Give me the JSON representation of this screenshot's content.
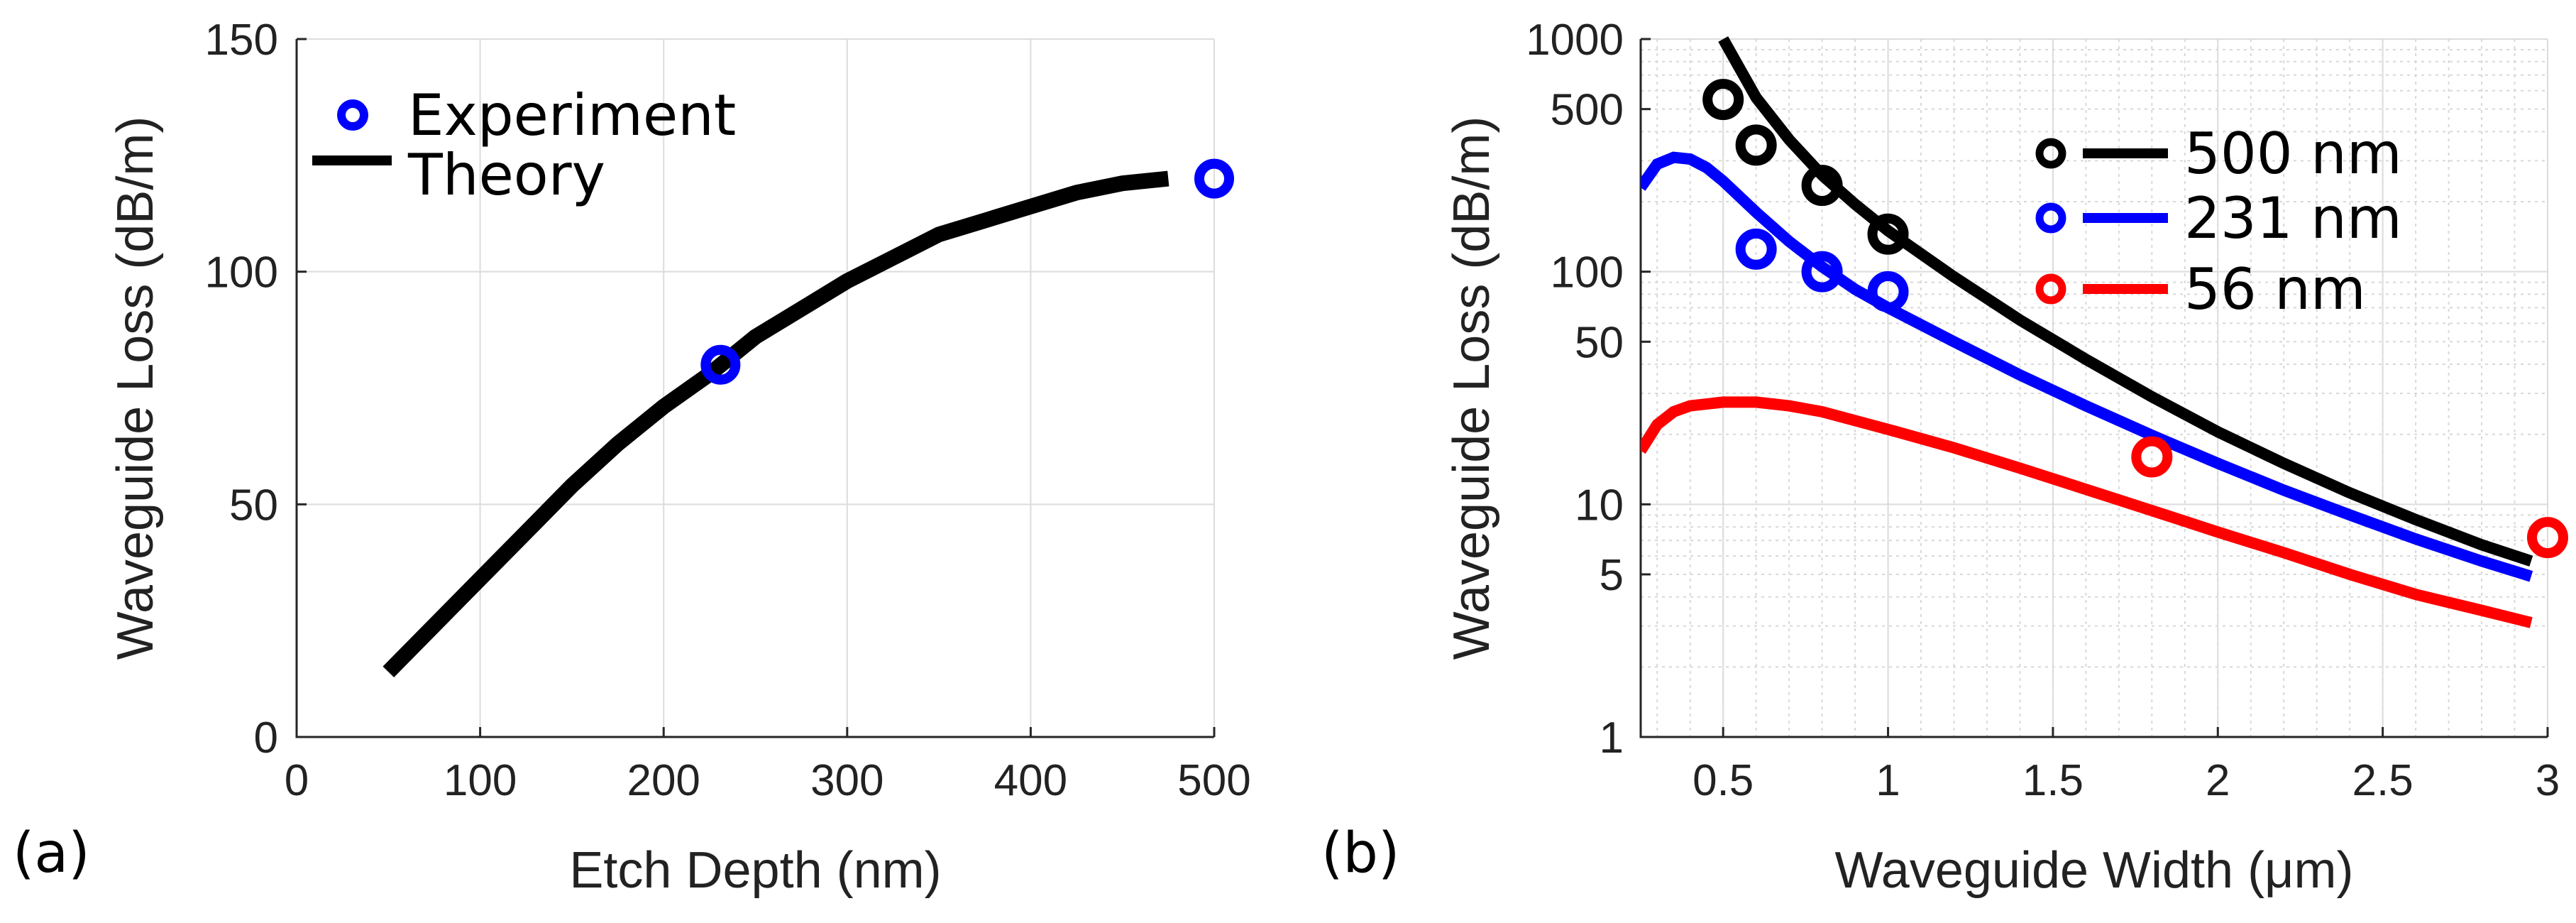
{
  "chart_data": [
    {
      "panel": "(a)",
      "type": "line",
      "xlabel": "Etch Depth (nm)",
      "ylabel": "Waveguide Loss (dB/m)",
      "xlim": [
        0,
        500
      ],
      "ylim": [
        0,
        150
      ],
      "xticks": [
        "0",
        "100",
        "200",
        "300",
        "400",
        "500"
      ],
      "yticks": [
        "0",
        "50",
        "100",
        "150"
      ],
      "grid": true,
      "legend_position": "top-left",
      "legend": [
        "Experiment",
        "Theory"
      ],
      "series": [
        {
          "name": "Theory",
          "style": "line",
          "color": "#000000",
          "x": [
            50,
            75,
            100,
            125,
            150,
            175,
            200,
            225,
            250,
            275,
            300,
            325,
            350,
            375,
            400,
            425,
            450,
            475
          ],
          "y": [
            14,
            24,
            34,
            44,
            54,
            63,
            71,
            78,
            86,
            92,
            98,
            103,
            108,
            111,
            114,
            117,
            119,
            120
          ]
        },
        {
          "name": "Experiment",
          "style": "marker",
          "color": "#0000ff",
          "x": [
            231,
            500
          ],
          "y": [
            80,
            120
          ]
        }
      ]
    },
    {
      "panel": "(b)",
      "type": "line",
      "xlabel": "Waveguide Width (μm)",
      "ylabel": "Waveguide Loss (dB/m)",
      "xscale": "linear",
      "yscale": "log",
      "xlim": [
        0.25,
        3
      ],
      "ylim": [
        1,
        1000
      ],
      "xticks": [
        "0.5",
        "1",
        "1.5",
        "2",
        "2.5",
        "3"
      ],
      "yticks": [
        "1",
        "5",
        "10",
        "50",
        "100",
        "500",
        "1000"
      ],
      "grid": true,
      "legend_position": "top-right",
      "legend": [
        "500 nm",
        "231 nm",
        "56 nm"
      ],
      "series": [
        {
          "name": "500 nm",
          "color": "#000000",
          "line_x": [
            0.5,
            0.6,
            0.7,
            0.8,
            0.9,
            1.0,
            1.2,
            1.4,
            1.6,
            1.8,
            2.0,
            2.2,
            2.4,
            2.6,
            2.8,
            2.95
          ],
          "line_y": [
            1000,
            560,
            370,
            260,
            195,
            150,
            95,
            62,
            42,
            29,
            20.5,
            15,
            11.2,
            8.6,
            6.7,
            5.7
          ],
          "points_x": [
            0.5,
            0.6,
            0.8,
            1.0
          ],
          "points_y": [
            550,
            350,
            235,
            145
          ]
        },
        {
          "name": "231 nm",
          "color": "#0000ff",
          "line_x": [
            0.25,
            0.3,
            0.35,
            0.4,
            0.45,
            0.5,
            0.6,
            0.7,
            0.8,
            0.9,
            1.0,
            1.2,
            1.4,
            1.6,
            1.8,
            2.0,
            2.2,
            2.4,
            2.6,
            2.8,
            2.95
          ],
          "line_y": [
            230,
            290,
            310,
            305,
            280,
            245,
            180,
            135,
            105,
            84,
            70,
            50,
            36,
            26.5,
            19.8,
            15,
            11.5,
            9,
            7.1,
            5.7,
            4.9
          ],
          "points_x": [
            0.6,
            0.8,
            1.0
          ],
          "points_y": [
            125,
            100,
            82
          ]
        },
        {
          "name": "56 nm",
          "color": "#ff0000",
          "line_x": [
            0.25,
            0.3,
            0.35,
            0.4,
            0.5,
            0.6,
            0.7,
            0.8,
            1.0,
            1.2,
            1.4,
            1.6,
            1.8,
            2.0,
            2.2,
            2.4,
            2.6,
            2.8,
            2.95
          ],
          "line_y": [
            17,
            22,
            25,
            26.5,
            27.5,
            27.5,
            26.5,
            25,
            21,
            17.5,
            14.3,
            11.6,
            9.4,
            7.6,
            6.2,
            5,
            4.1,
            3.5,
            3.1
          ],
          "points_x": [
            1.8,
            3.0
          ],
          "points_y": [
            16,
            7.2
          ]
        }
      ]
    }
  ]
}
